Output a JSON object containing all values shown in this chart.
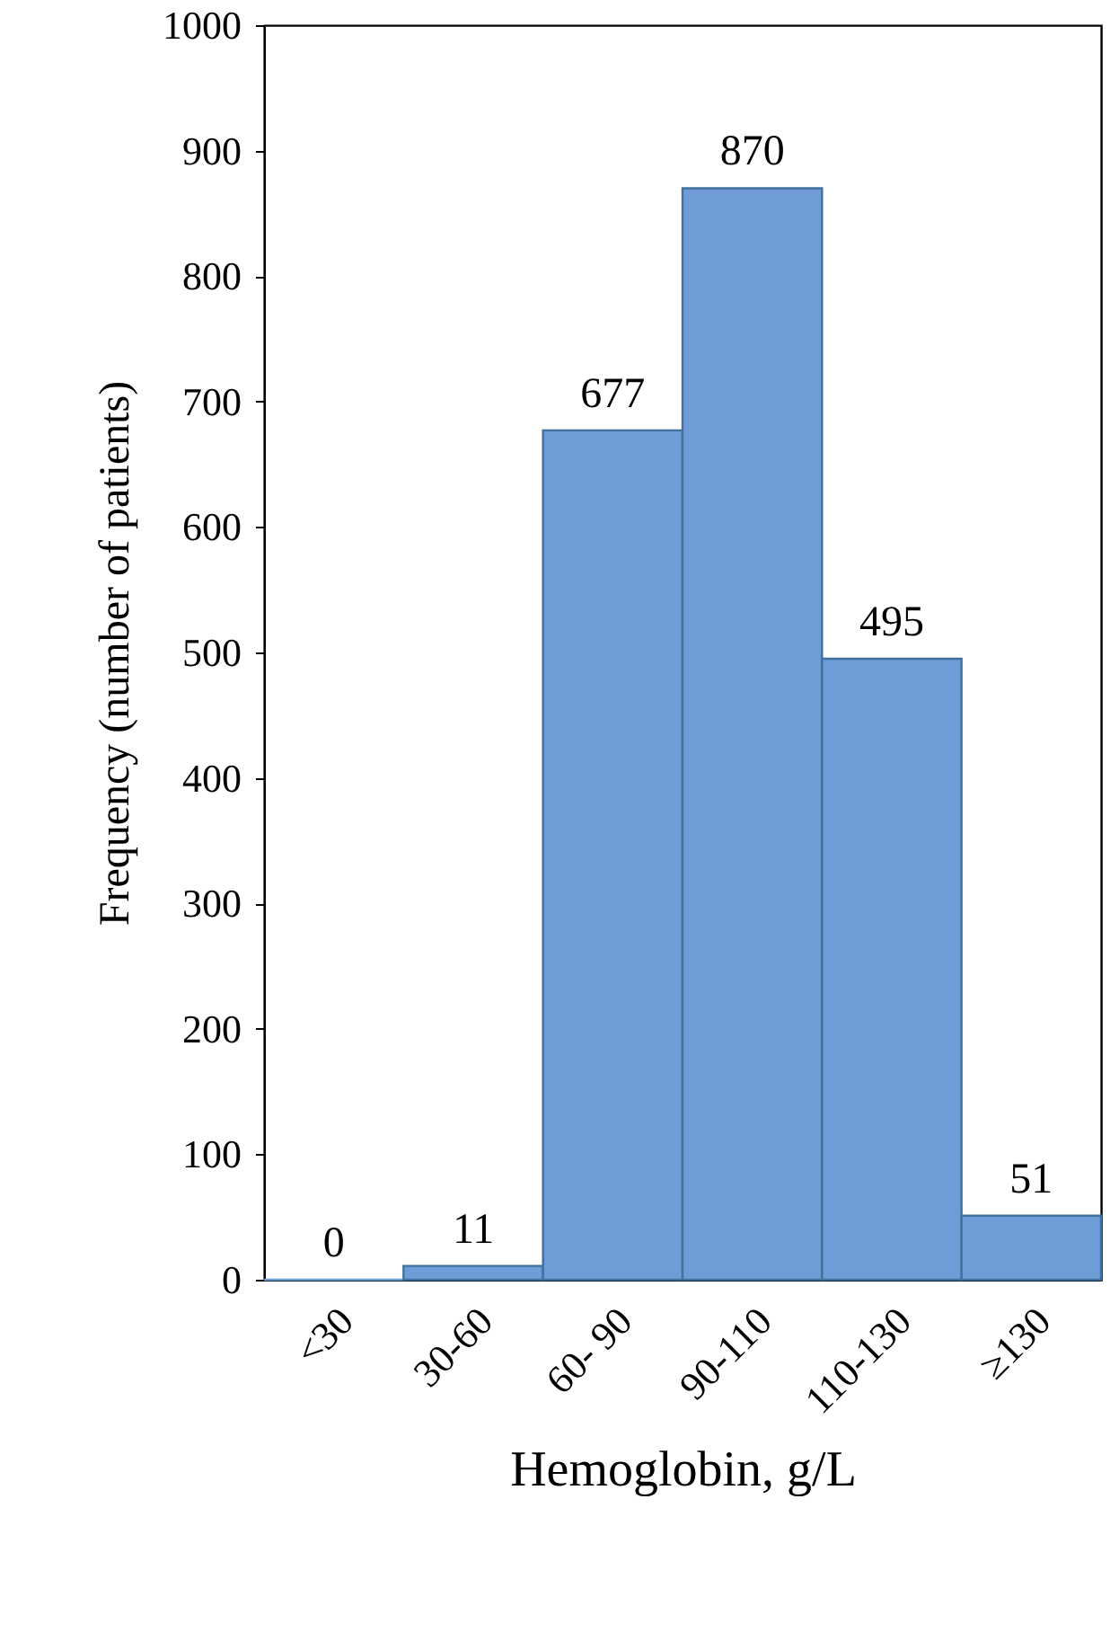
{
  "chart_data": {
    "type": "bar",
    "xlabel": "Hemoglobin, g/L",
    "ylabel": "Frequency (number of patients)",
    "categories": [
      "<30",
      "30-60",
      "60- 90",
      "90-110",
      "110-130",
      "≥130"
    ],
    "values": [
      0,
      11,
      677,
      870,
      495,
      51
    ],
    "color": "#6f9bd6",
    "ylim": [
      0,
      1000
    ],
    "yticks": [
      0,
      100,
      200,
      300,
      400,
      500,
      600,
      700,
      800,
      900,
      1000
    ],
    "data_labels": true
  }
}
